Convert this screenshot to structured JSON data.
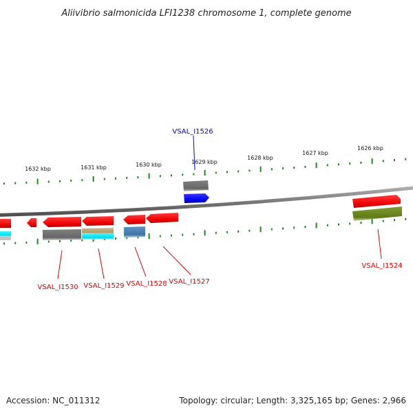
{
  "title": "Aliivibrio salmonicida LFI1238 chromosome 1, complete genome",
  "footer": {
    "accession": "Accession: NC_011312",
    "stats": "Topology: circular; Length: 3,325,165 bp; Genes: 2,966"
  },
  "scale_labels": [
    "1632 kbp",
    "1631 kbp",
    "1630 kbp",
    "1629 kbp",
    "1628 kbp",
    "1627 kbp",
    "1626 kbp"
  ],
  "gene_labels": [
    {
      "text": "VSAL_I1526",
      "color": "#0000cc"
    },
    {
      "text": "VSAL_I1530",
      "color": "#dd0000"
    },
    {
      "text": "VSAL_I1529",
      "color": "#dd0000"
    },
    {
      "text": "VSAL_I1528",
      "color": "#dd0000"
    },
    {
      "text": "VSAL_I1527",
      "color": "#dd0000"
    },
    {
      "text": "VSAL_I1524",
      "color": "#dd0000"
    }
  ],
  "colors": {
    "forward_cds": "#ff0000",
    "reverse_cds": "#0000ff",
    "gene_grey": "#6e6e6e",
    "gene_cyan": "#00e8ff",
    "gene_tan": "#b9a77a",
    "gene_steelblue": "#4a7fb0",
    "gene_olive": "#6e8a22",
    "backbone": "#8c8c8c",
    "ticks": "#1a8a1a"
  }
}
